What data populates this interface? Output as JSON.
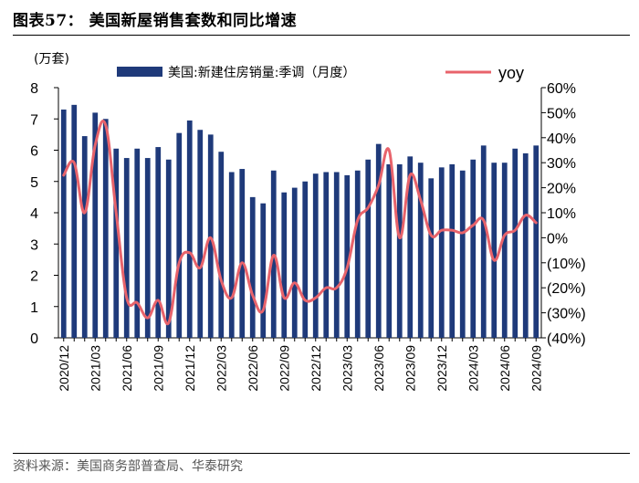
{
  "header": {
    "title": "图表57：  美国新屋销售套数和同比增速"
  },
  "footer": {
    "source": "资料来源：美国商务部普查局、华泰研究"
  },
  "chart_data": {
    "type": "bar+line",
    "unit_left": "(万套)",
    "categories": [
      "2020/12",
      "2021/01",
      "2021/02",
      "2021/03",
      "2021/04",
      "2021/05",
      "2021/06",
      "2021/07",
      "2021/08",
      "2021/09",
      "2021/10",
      "2021/11",
      "2021/12",
      "2022/01",
      "2022/02",
      "2022/03",
      "2022/04",
      "2022/05",
      "2022/06",
      "2022/07",
      "2022/08",
      "2022/09",
      "2022/10",
      "2022/11",
      "2022/12",
      "2023/01",
      "2023/02",
      "2023/03",
      "2023/04",
      "2023/05",
      "2023/06",
      "2023/07",
      "2023/08",
      "2023/09",
      "2023/10",
      "2023/11",
      "2023/12",
      "2024/01",
      "2024/02",
      "2024/03",
      "2024/04",
      "2024/05",
      "2024/06",
      "2024/07",
      "2024/08",
      "2024/09"
    ],
    "x_tick_labels": [
      "2020/12",
      "2021/03",
      "2021/06",
      "2021/09",
      "2021/12",
      "2022/03",
      "2022/06",
      "2022/09",
      "2022/12",
      "2023/03",
      "2023/06",
      "2023/09",
      "2023/12",
      "2024/03",
      "2024/06",
      "2024/09"
    ],
    "series": [
      {
        "name": "美国:新建住房销量:季调（月度）",
        "type": "bar",
        "axis": "left",
        "color": "#1f3a7a",
        "values": [
          7.3,
          7.45,
          6.45,
          7.2,
          7.0,
          6.05,
          5.75,
          6.05,
          5.75,
          6.1,
          5.7,
          6.55,
          6.95,
          6.65,
          6.5,
          5.95,
          5.3,
          5.4,
          4.5,
          4.3,
          5.35,
          4.65,
          4.8,
          5.0,
          5.25,
          5.3,
          5.3,
          5.2,
          5.35,
          5.7,
          6.2,
          5.55,
          5.55,
          5.8,
          5.6,
          5.1,
          5.45,
          5.55,
          5.35,
          5.7,
          6.15,
          5.6,
          5.6,
          6.05,
          5.9,
          6.15
        ]
      },
      {
        "name": "yoy",
        "type": "line",
        "axis": "right",
        "color": "#e8636b",
        "values": [
          25,
          30,
          10,
          37,
          45,
          10,
          -24,
          -26,
          -32,
          -25,
          -34,
          -10,
          -6,
          -12,
          0,
          -17,
          -24,
          -10,
          -23,
          -29,
          -7,
          -24,
          -18,
          -25,
          -24,
          -20,
          -20,
          -12,
          7,
          12,
          21,
          35,
          0,
          25,
          15,
          1,
          3,
          3,
          2,
          5,
          7,
          -9,
          1,
          3,
          9,
          6
        ]
      }
    ],
    "ylim_left": [
      0,
      8
    ],
    "yticks_left": [
      "0",
      "1",
      "2",
      "3",
      "4",
      "5",
      "6",
      "7",
      "8"
    ],
    "ylim_right": [
      -40,
      60
    ],
    "yticks_right": [
      "(40%)",
      "(30%)",
      "(20%)",
      "(10%)",
      "0%",
      "10%",
      "20%",
      "30%",
      "40%",
      "50%",
      "60%"
    ],
    "legend": {
      "bar_label": "美国:新建住房销量:季调（月度）",
      "line_label": "yoy",
      "position": "top"
    }
  }
}
